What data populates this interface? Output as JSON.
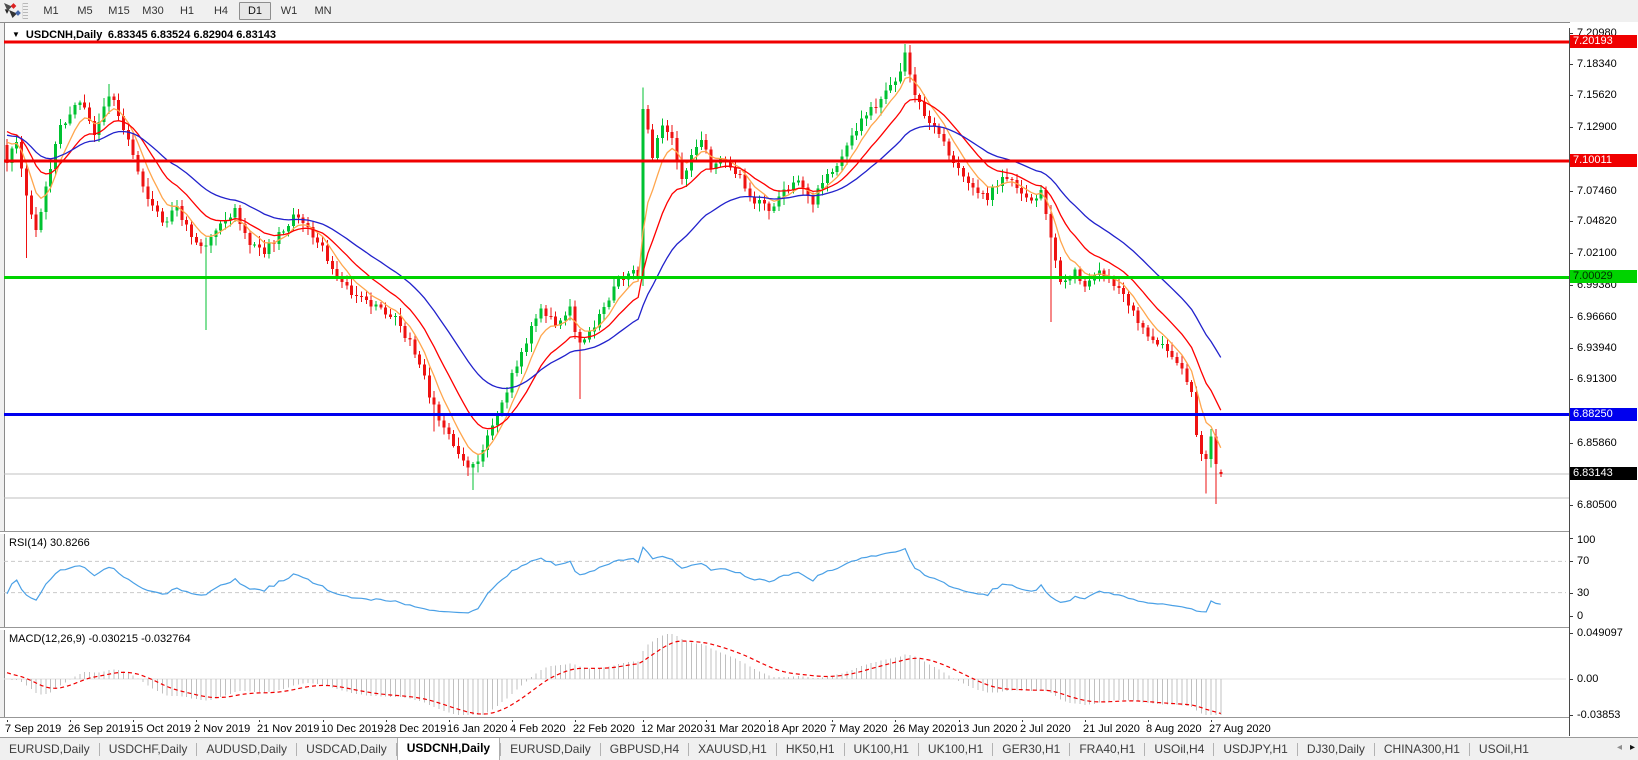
{
  "toolbar": {
    "tool_icon": "chart-objects",
    "dropdown_icon": "▾",
    "timeframes": [
      "M1",
      "M5",
      "M15",
      "M30",
      "H1",
      "H4",
      "D1",
      "W1",
      "MN"
    ],
    "active_timeframe": "D1"
  },
  "chart": {
    "collapse_icon": "▼",
    "title_symbol": "USDCNH,Daily",
    "title_ohlc": "6.83345 6.83524 6.82904 6.83143",
    "axis_ticks": [
      "7.20980",
      "7.18340",
      "7.15620",
      "7.12900",
      "7.07460",
      "7.04820",
      "7.02100",
      "6.99380",
      "6.96660",
      "6.93940",
      "6.91300",
      "6.85860",
      "6.80500"
    ],
    "levels": [
      {
        "price": 7.20193,
        "label": "7.20193",
        "color": "#f00000",
        "text_color": "#ffffff"
      },
      {
        "price": 7.10011,
        "label": "7.10011",
        "color": "#f00000",
        "text_color": "#ffffff"
      },
      {
        "price": 7.00029,
        "label": "7.00029",
        "color": "#00d300",
        "text_color": "#002b00"
      },
      {
        "price": 6.8825,
        "label": "6.88250",
        "color": "#0000ee",
        "text_color": "#ffffff"
      }
    ],
    "minor_line_price": 6.811,
    "bid": {
      "price": 6.83143,
      "label": "6.83143",
      "color": "#000000",
      "text_color": "#ffffff"
    },
    "dates": [
      "7 Sep 2019",
      "26 Sep 2019",
      "15 Oct 2019",
      "2 Nov 2019",
      "21 Nov 2019",
      "10 Dec 2019",
      "28 Dec 2019",
      "16 Jan 2020",
      "4 Feb 2020",
      "22 Feb 2020",
      "12 Mar 2020",
      "31 Mar 2020",
      "18 Apr 2020",
      "7 May 2020",
      "26 May 2020",
      "13 Jun 2020",
      "2 Jul 2020",
      "21 Jul 2020",
      "8 Aug 2020",
      "27 Aug 2020"
    ]
  },
  "rsi": {
    "label": "RSI(14) 30.8266",
    "value": 30.8266,
    "axis_ticks": [
      "100",
      "70",
      "30",
      "0"
    ],
    "axis_values": [
      100,
      70,
      30,
      0
    ],
    "level_lines": [
      70,
      30
    ],
    "line_color": "#4aa0e6"
  },
  "macd": {
    "label": "MACD(12,26,9) -0.030215 -0.032764",
    "value": -0.030215,
    "signal_value": -0.032764,
    "axis_ticks": [
      "0.049097",
      "0.00",
      "-0.03853"
    ],
    "axis_values": [
      0.049097,
      0,
      -0.03853
    ],
    "bar_color": "#c0c0c0",
    "signal_color": "#f00000"
  },
  "tabs": {
    "items": [
      "EURUSD,Daily",
      "USDCHF,Daily",
      "AUDUSD,Daily",
      "USDCAD,Daily",
      "USDCNH,Daily",
      "EURUSD,Daily",
      "GBPUSD,H4",
      "XAUUSD,H1",
      "HK50,H1",
      "UK100,H1",
      "UK100,H1",
      "GER30,H1",
      "FRA40,H1",
      "USOil,H4",
      "USDJPY,H1",
      "DJ30,Daily",
      "CHINA300,H1",
      "USOil,H1"
    ],
    "active_index": 4,
    "left_arrow": "◂",
    "right_arrow": "▸"
  },
  "chart_data": {
    "type": "candlestick",
    "symbol": "USDCNH",
    "timeframe": "Daily",
    "last_candle": {
      "open": 6.83345,
      "high": 6.83524,
      "low": 6.82904,
      "close": 6.83143
    },
    "y_range": {
      "top": 7.2098,
      "bottom": 6.805
    },
    "candle_count": 251,
    "date_tick_indices": [
      0,
      13,
      26,
      39,
      52,
      65,
      78,
      91,
      104,
      117,
      131,
      144,
      157,
      170,
      183,
      196,
      209,
      222,
      235,
      248
    ],
    "up_color": "#00c232",
    "down_color": "#ee1212",
    "close_anchors": [
      [
        0,
        7.1
      ],
      [
        2,
        7.118
      ],
      [
        4,
        7.072
      ],
      [
        6,
        7.038
      ],
      [
        8,
        7.08
      ],
      [
        11,
        7.128
      ],
      [
        14,
        7.15
      ],
      [
        16,
        7.148
      ],
      [
        18,
        7.12
      ],
      [
        21,
        7.158
      ],
      [
        23,
        7.142
      ],
      [
        26,
        7.103
      ],
      [
        29,
        7.066
      ],
      [
        32,
        7.047
      ],
      [
        35,
        7.058
      ],
      [
        38,
        7.035
      ],
      [
        41,
        7.027
      ],
      [
        44,
        7.049
      ],
      [
        47,
        7.057
      ],
      [
        50,
        7.03
      ],
      [
        53,
        7.021
      ],
      [
        56,
        7.037
      ],
      [
        59,
        7.053
      ],
      [
        62,
        7.041
      ],
      [
        65,
        7.026
      ],
      [
        68,
        7.001
      ],
      [
        71,
        6.986
      ],
      [
        74,
        6.979
      ],
      [
        77,
        6.973
      ],
      [
        80,
        6.964
      ],
      [
        83,
        6.944
      ],
      [
        85,
        6.925
      ],
      [
        88,
        6.888
      ],
      [
        91,
        6.866
      ],
      [
        94,
        6.843
      ],
      [
        96,
        6.838
      ],
      [
        98,
        6.852
      ],
      [
        101,
        6.88
      ],
      [
        104,
        6.916
      ],
      [
        107,
        6.946
      ],
      [
        110,
        6.976
      ],
      [
        113,
        6.958
      ],
      [
        116,
        6.972
      ],
      [
        118,
        6.941
      ],
      [
        120,
        6.952
      ],
      [
        123,
        6.976
      ],
      [
        126,
        6.996
      ],
      [
        129,
        7.004
      ],
      [
        130,
        6.998
      ],
      [
        131,
        7.148
      ],
      [
        133,
        7.102
      ],
      [
        135,
        7.132
      ],
      [
        137,
        7.118
      ],
      [
        139,
        7.082
      ],
      [
        141,
        7.108
      ],
      [
        143,
        7.118
      ],
      [
        145,
        7.096
      ],
      [
        148,
        7.102
      ],
      [
        151,
        7.086
      ],
      [
        154,
        7.066
      ],
      [
        157,
        7.058
      ],
      [
        160,
        7.076
      ],
      [
        163,
        7.082
      ],
      [
        166,
        7.066
      ],
      [
        169,
        7.088
      ],
      [
        172,
        7.104
      ],
      [
        175,
        7.128
      ],
      [
        178,
        7.143
      ],
      [
        181,
        7.162
      ],
      [
        184,
        7.176
      ],
      [
        185,
        7.19
      ],
      [
        187,
        7.158
      ],
      [
        190,
        7.132
      ],
      [
        193,
        7.116
      ],
      [
        196,
        7.092
      ],
      [
        199,
        7.078
      ],
      [
        202,
        7.07
      ],
      [
        205,
        7.086
      ],
      [
        208,
        7.078
      ],
      [
        211,
        7.068
      ],
      [
        213,
        7.074
      ],
      [
        215,
        7.032
      ],
      [
        217,
        6.996
      ],
      [
        220,
        7.006
      ],
      [
        222,
        6.99
      ],
      [
        225,
        7.004
      ],
      [
        228,
        6.996
      ],
      [
        231,
        6.976
      ],
      [
        234,
        6.956
      ],
      [
        237,
        6.943
      ],
      [
        240,
        6.934
      ],
      [
        242,
        6.92
      ],
      [
        244,
        6.902
      ],
      [
        245,
        6.868
      ],
      [
        246,
        6.852
      ],
      [
        247,
        6.842
      ],
      [
        248,
        6.864
      ],
      [
        249,
        6.838
      ],
      [
        250,
        6.831
      ]
    ],
    "pre_anchors": [
      [
        -55,
        7.048
      ],
      [
        -40,
        7.078
      ],
      [
        -25,
        7.118
      ],
      [
        -10,
        7.152
      ],
      [
        -1,
        7.112
      ]
    ],
    "wick_spikes": [
      {
        "i": 4,
        "low": 7.017
      },
      {
        "i": 21,
        "high": 7.166
      },
      {
        "i": 41,
        "low": 6.955
      },
      {
        "i": 88,
        "low": 6.868
      },
      {
        "i": 96,
        "low": 6.818
      },
      {
        "i": 118,
        "low": 6.896
      },
      {
        "i": 131,
        "high": 7.163,
        "low": 6.993
      },
      {
        "i": 185,
        "high": 7.1995
      },
      {
        "i": 215,
        "low": 6.962
      },
      {
        "i": 247,
        "low": 6.815
      },
      {
        "i": 249,
        "low": 6.806
      }
    ],
    "moving_averages": [
      {
        "name": "fast",
        "period": 6,
        "color": "#ffa64d"
      },
      {
        "name": "mid",
        "period": 14,
        "color": "#ff0000"
      },
      {
        "name": "slow",
        "period": 30,
        "color": "#2222cc"
      }
    ],
    "rsi_period": 14,
    "macd_params": [
      12,
      26,
      9
    ],
    "macd_axis_range": [
      0.049097,
      -0.03853
    ]
  }
}
